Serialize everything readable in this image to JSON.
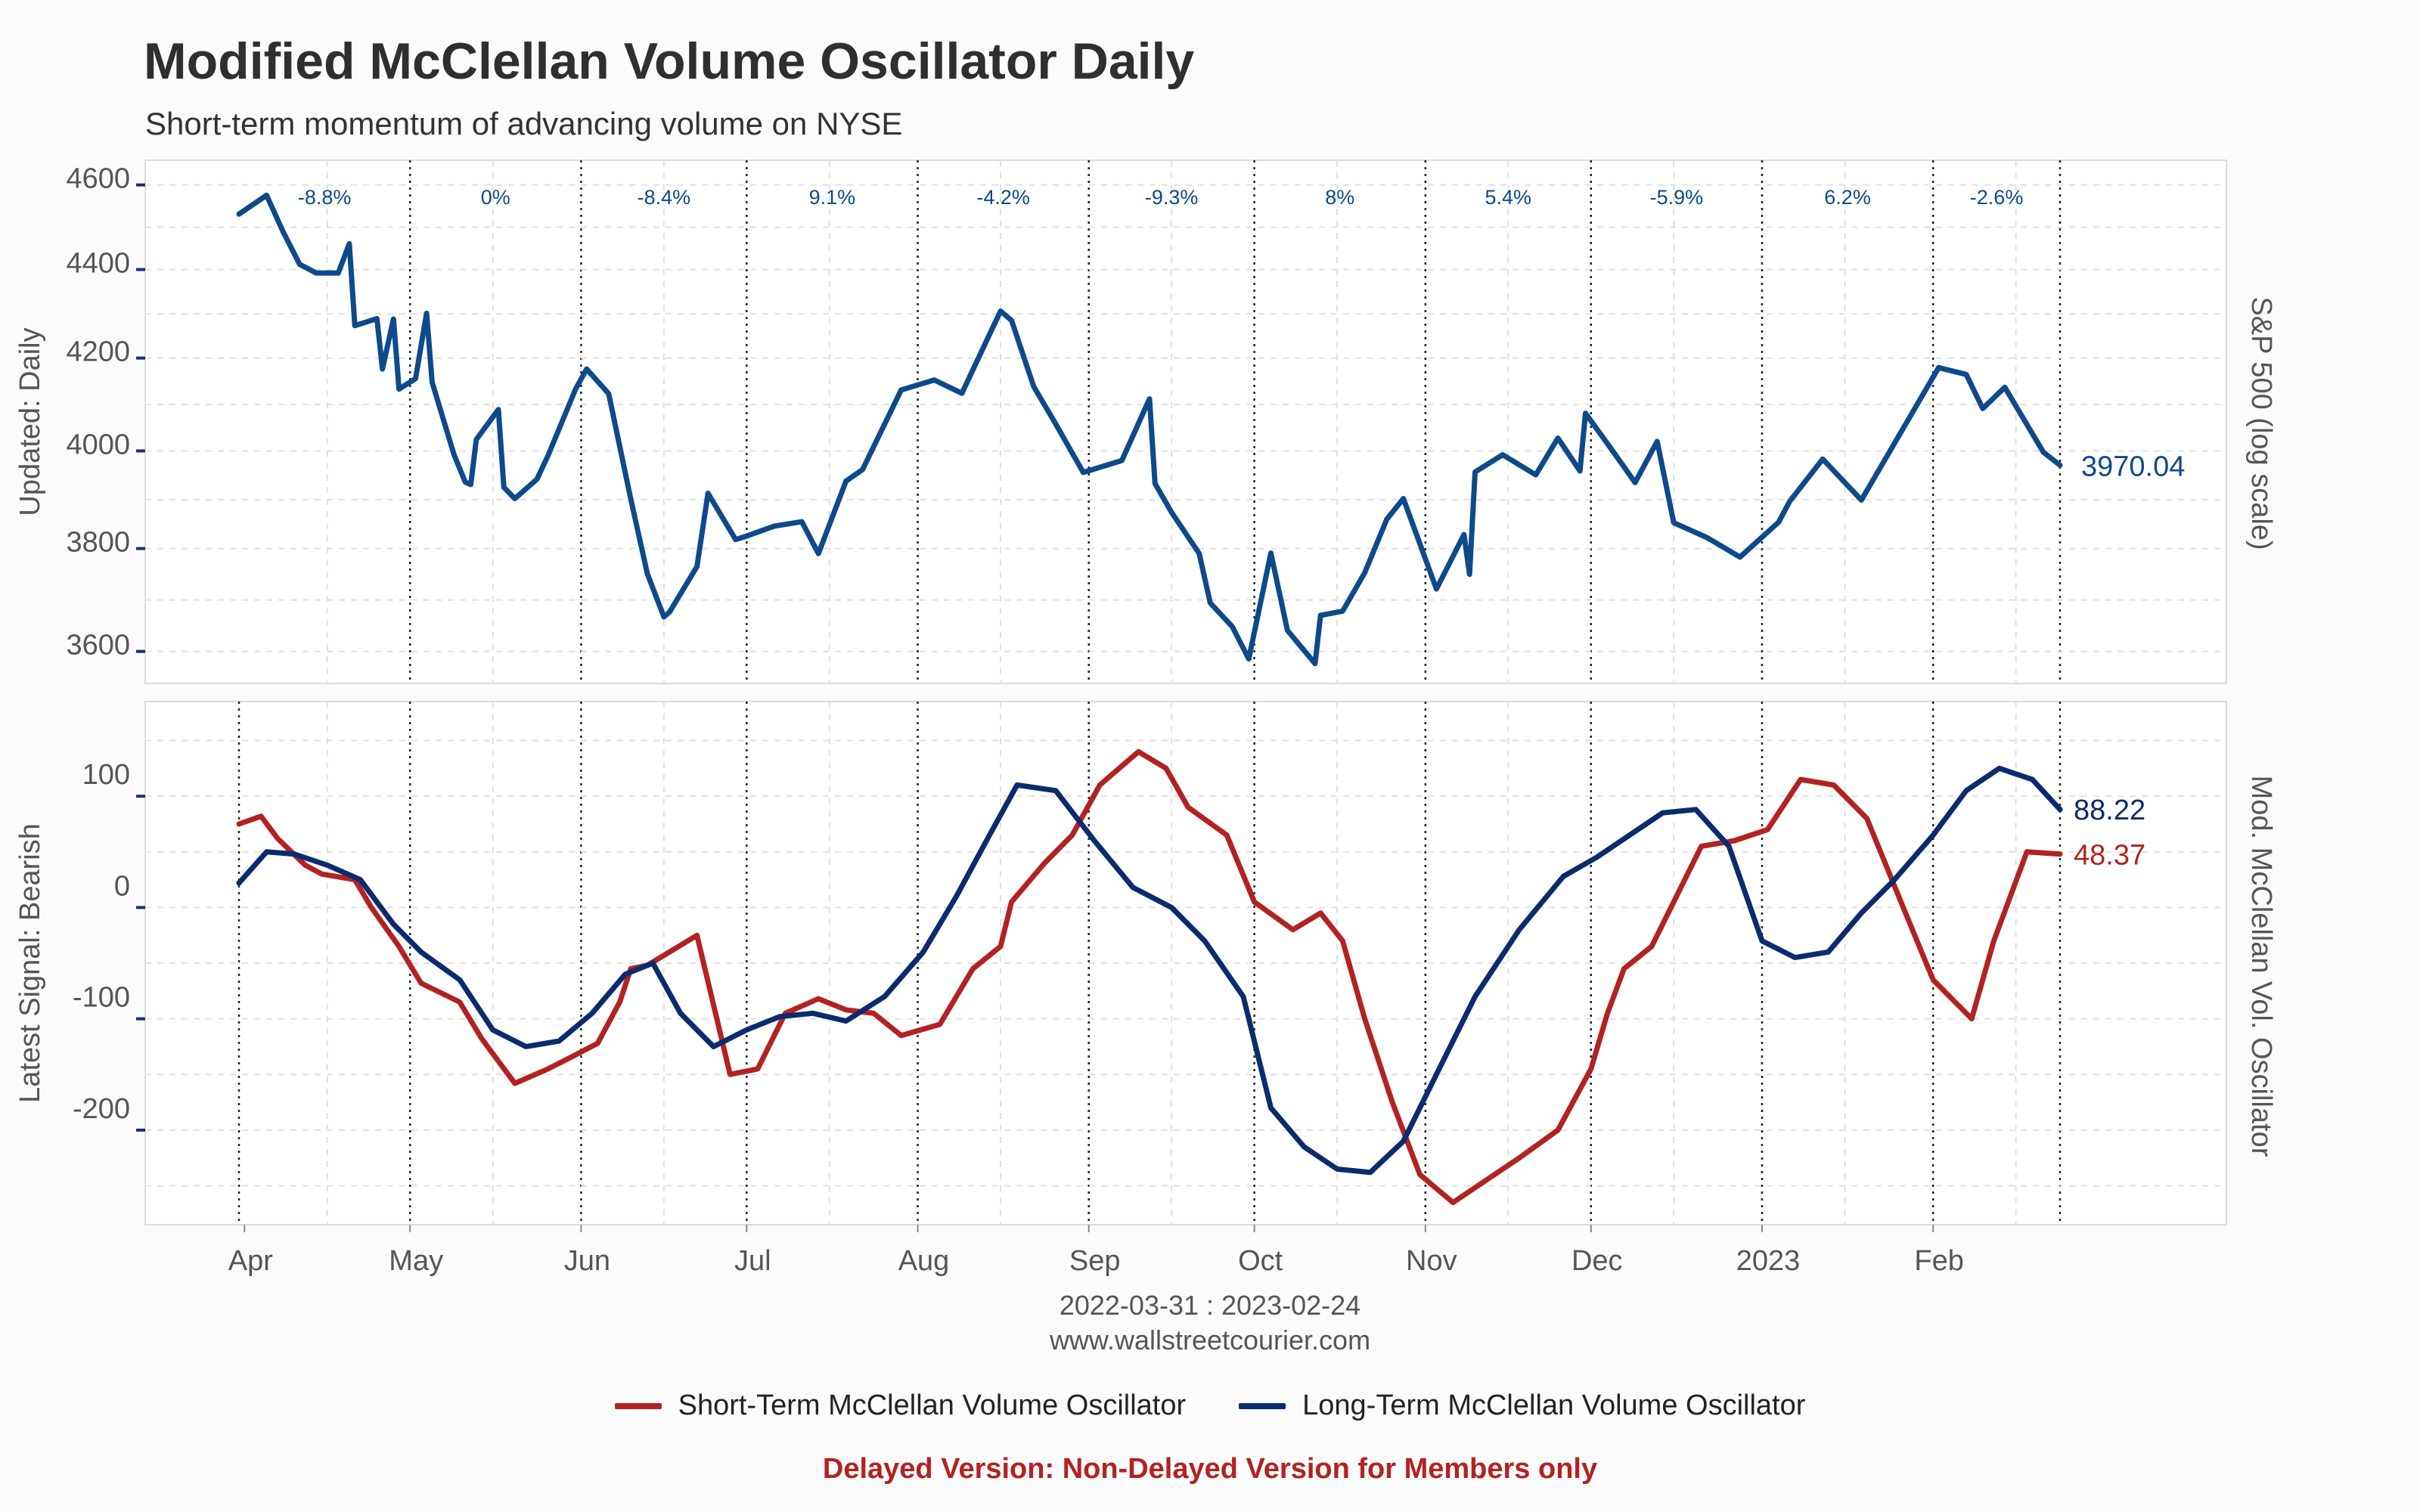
{
  "title": "Modified McClellan Volume Oscillator Daily",
  "subtitle": "Short-term momentum of advancing volume on NYSE",
  "date_range": "2022-03-31 : 2023-02-24",
  "website": "www.wallstreetcourier.com",
  "footer_note": "Delayed Version: Non-Delayed Version for Members only",
  "colors": {
    "sp500": "#0d4a8a",
    "short_term": "#b22222",
    "long_term": "#0a2c6e",
    "footer": "#b22222",
    "grid": "#e0e0e0"
  },
  "legend": [
    {
      "label": "Short-Term McClellan Volume Oscillator",
      "color": "#b22222"
    },
    {
      "label": "Long-Term McClellan Volume Oscillator",
      "color": "#0a2c6e"
    }
  ],
  "chart_data": [
    {
      "type": "line",
      "ylabel_left": "Updated: Daily",
      "ylabel_right": "S&P 500 (log scale)",
      "log_scale": true,
      "ylim": [
        3540,
        4660
      ],
      "yticks": [
        3600,
        3800,
        4000,
        4200,
        4400,
        4600
      ],
      "last_value_label": "3970.04",
      "monthly_changes": [
        "-8.8%",
        "0%",
        "-8.4%",
        "9.1%",
        "-4.2%",
        "-9.3%",
        "8%",
        "5.4%",
        "-5.9%",
        "6.2%",
        "-2.6%"
      ],
      "series": [
        {
          "color": "#0d4a8a",
          "x": [
            "2022-03-31",
            "2022-04-05",
            "2022-04-08",
            "2022-04-11",
            "2022-04-14",
            "2022-04-18",
            "2022-04-20",
            "2022-04-21",
            "2022-04-25",
            "2022-04-26",
            "2022-04-28",
            "2022-04-29",
            "2022-05-02",
            "2022-05-04",
            "2022-05-05",
            "2022-05-09",
            "2022-05-11",
            "2022-05-12",
            "2022-05-13",
            "2022-05-17",
            "2022-05-18",
            "2022-05-20",
            "2022-05-24",
            "2022-05-26",
            "2022-05-31",
            "2022-06-02",
            "2022-06-06",
            "2022-06-10",
            "2022-06-13",
            "2022-06-16",
            "2022-06-17",
            "2022-06-22",
            "2022-06-24",
            "2022-06-29",
            "2022-07-01",
            "2022-07-06",
            "2022-07-11",
            "2022-07-14",
            "2022-07-19",
            "2022-07-22",
            "2022-07-29",
            "2022-08-04",
            "2022-08-09",
            "2022-08-16",
            "2022-08-18",
            "2022-08-22",
            "2022-08-26",
            "2022-08-31",
            "2022-09-07",
            "2022-09-12",
            "2022-09-13",
            "2022-09-16",
            "2022-09-21",
            "2022-09-23",
            "2022-09-27",
            "2022-09-30",
            "2022-10-04",
            "2022-10-07",
            "2022-10-12",
            "2022-10-13",
            "2022-10-17",
            "2022-10-21",
            "2022-10-25",
            "2022-10-28",
            "2022-11-03",
            "2022-11-08",
            "2022-11-09",
            "2022-11-10",
            "2022-11-15",
            "2022-11-21",
            "2022-11-25",
            "2022-11-29",
            "2022-11-30",
            "2022-12-05",
            "2022-12-09",
            "2022-12-13",
            "2022-12-16",
            "2022-12-22",
            "2022-12-28",
            "2023-01-04",
            "2023-01-06",
            "2023-01-12",
            "2023-01-19",
            "2023-01-25",
            "2023-02-02",
            "2023-02-07",
            "2023-02-10",
            "2023-02-14",
            "2023-02-21",
            "2023-02-24"
          ],
          "y": [
            4530,
            4575,
            4488,
            4412,
            4392,
            4392,
            4460,
            4272,
            4288,
            4176,
            4287,
            4132,
            4155,
            4300,
            4147,
            3991,
            3935,
            3930,
            4024,
            4088,
            3924,
            3901,
            3941,
            3990,
            4132,
            4176,
            4122,
            3900,
            3750,
            3666,
            3675,
            3764,
            3912,
            3818,
            3825,
            3845,
            3854,
            3790,
            3937,
            3961,
            4130,
            4152,
            4123,
            4305,
            4284,
            4138,
            4057,
            3955,
            3980,
            4111,
            3932,
            3873,
            3790,
            3693,
            3647,
            3586,
            3791,
            3640,
            3577,
            3669,
            3677,
            3752,
            3859,
            3901,
            3720,
            3828,
            3749,
            3956,
            3992,
            3950,
            4027,
            3958,
            4080,
            3999,
            3934,
            4020,
            3852,
            3822,
            3783,
            3853,
            3895,
            3983,
            3898,
            4016,
            4179,
            4164,
            4090,
            4136,
            3997,
            3970
          ]
        }
      ]
    },
    {
      "type": "line",
      "ylabel_left": "Latest Signal: Bearish",
      "ylabel_right": "Mod. McClellan Vol. Oscillator",
      "ylim": [
        -285,
        185
      ],
      "yticks": [
        -200,
        -100,
        0,
        100
      ],
      "x_tick_labels": [
        "Apr",
        "May",
        "Jun",
        "Jul",
        "Aug",
        "Sep",
        "Oct",
        "Nov",
        "Dec",
        "2023",
        "Feb"
      ],
      "series": [
        {
          "color": "#b22222",
          "last_value_label": "48.37",
          "x": [
            "2022-03-31",
            "2022-04-04",
            "2022-04-07",
            "2022-04-12",
            "2022-04-15",
            "2022-04-21",
            "2022-04-24",
            "2022-04-29",
            "2022-05-03",
            "2022-05-10",
            "2022-05-14",
            "2022-05-20",
            "2022-05-26",
            "2022-05-30",
            "2022-06-04",
            "2022-06-08",
            "2022-06-10",
            "2022-06-13",
            "2022-06-17",
            "2022-06-22",
            "2022-06-28",
            "2022-07-03",
            "2022-07-08",
            "2022-07-14",
            "2022-07-19",
            "2022-07-24",
            "2022-07-29",
            "2022-08-05",
            "2022-08-11",
            "2022-08-16",
            "2022-08-18",
            "2022-08-24",
            "2022-08-29",
            "2022-09-03",
            "2022-09-10",
            "2022-09-15",
            "2022-09-19",
            "2022-09-26",
            "2022-10-01",
            "2022-10-08",
            "2022-10-13",
            "2022-10-17",
            "2022-10-21",
            "2022-10-26",
            "2022-10-31",
            "2022-11-06",
            "2022-11-12",
            "2022-11-18",
            "2022-11-25",
            "2022-12-01",
            "2022-12-04",
            "2022-12-07",
            "2022-12-12",
            "2022-12-16",
            "2022-12-21",
            "2022-12-27",
            "2023-01-02",
            "2023-01-08",
            "2023-01-14",
            "2023-01-20",
            "2023-01-27",
            "2023-02-01",
            "2023-02-04",
            "2023-02-08",
            "2023-02-12",
            "2023-02-18",
            "2023-02-24"
          ],
          "y": [
            75,
            82,
            62,
            38,
            30,
            25,
            0,
            -35,
            -68,
            -85,
            -118,
            -158,
            -145,
            -135,
            -122,
            -85,
            -55,
            -52,
            -40,
            -25,
            -150,
            -145,
            -95,
            -82,
            -92,
            -95,
            -115,
            -105,
            -55,
            -35,
            5,
            40,
            65,
            110,
            140,
            125,
            90,
            65,
            5,
            -20,
            -5,
            -30,
            -100,
            -175,
            -240,
            -265,
            -245,
            -225,
            -200,
            -145,
            -95,
            -55,
            -35,
            5,
            55,
            60,
            70,
            115,
            110,
            80,
            -5,
            -65,
            -80,
            -100,
            -30,
            50,
            48
          ]
        },
        {
          "color": "#0a2c6e",
          "last_value_label": "88.22",
          "x": [
            "2022-03-31",
            "2022-04-05",
            "2022-04-10",
            "2022-04-16",
            "2022-04-22",
            "2022-04-28",
            "2022-05-03",
            "2022-05-10",
            "2022-05-16",
            "2022-05-22",
            "2022-05-28",
            "2022-06-03",
            "2022-06-09",
            "2022-06-14",
            "2022-06-19",
            "2022-06-25",
            "2022-07-01",
            "2022-07-07",
            "2022-07-13",
            "2022-07-19",
            "2022-07-26",
            "2022-08-02",
            "2022-08-08",
            "2022-08-14",
            "2022-08-19",
            "2022-08-26",
            "2022-09-02",
            "2022-09-09",
            "2022-09-16",
            "2022-09-22",
            "2022-09-29",
            "2022-10-04",
            "2022-10-10",
            "2022-10-16",
            "2022-10-22",
            "2022-10-28",
            "2022-11-03",
            "2022-11-10",
            "2022-11-18",
            "2022-11-26",
            "2022-12-02",
            "2022-12-08",
            "2022-12-14",
            "2022-12-20",
            "2022-12-26",
            "2023-01-01",
            "2023-01-07",
            "2023-01-13",
            "2023-01-19",
            "2023-01-25",
            "2023-02-01",
            "2023-02-07",
            "2023-02-13",
            "2023-02-19",
            "2023-02-24"
          ],
          "y": [
            22,
            50,
            48,
            38,
            25,
            -15,
            -40,
            -65,
            -110,
            -125,
            -120,
            -95,
            -60,
            -50,
            -95,
            -125,
            -110,
            -98,
            -95,
            -102,
            -80,
            -40,
            10,
            65,
            110,
            105,
            60,
            18,
            0,
            -30,
            -80,
            -180,
            -215,
            -235,
            -238,
            -210,
            -150,
            -80,
            -20,
            28,
            45,
            65,
            85,
            88,
            55,
            -30,
            -45,
            -40,
            -5,
            25,
            65,
            105,
            125,
            115,
            88
          ]
        }
      ]
    }
  ]
}
